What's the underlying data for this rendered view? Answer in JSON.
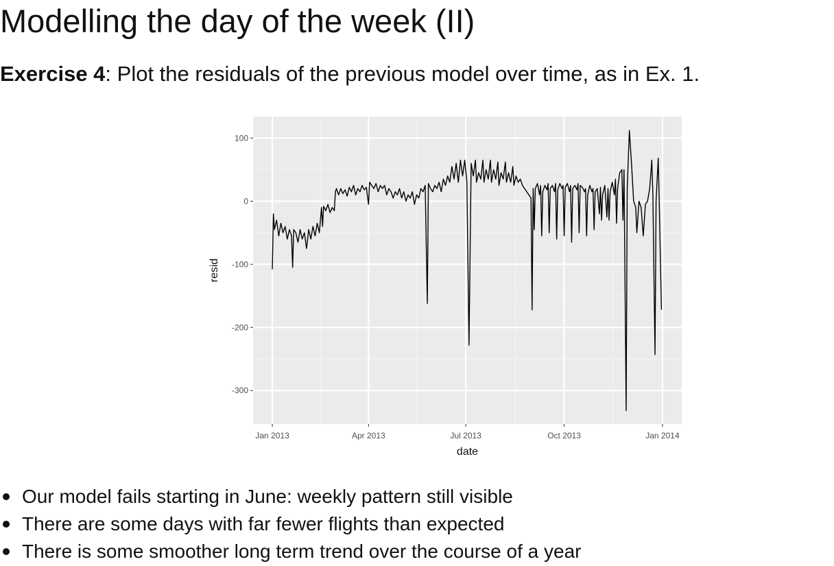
{
  "slide": {
    "title": "Modelling the day of the week (II)",
    "exercise": {
      "label": "Exercise 4",
      "text": ": Plot the residuals of the previous model over time, as in Ex. 1."
    },
    "bullets": [
      "Our model fails starting in June: weekly pattern still visible",
      "There are some days with far fewer flights than expected",
      "There is some smoother long term trend over the course of a year"
    ]
  },
  "chart_data": {
    "type": "line",
    "x_label": "date",
    "y_label": "resid",
    "color": "#000000",
    "grid": true,
    "xlim": [
      -18,
      383
    ],
    "xticks": [
      {
        "value": 0,
        "label": "Jan 2013"
      },
      {
        "value": 90,
        "label": "Apr 2013"
      },
      {
        "value": 181,
        "label": "Jul 2013"
      },
      {
        "value": 273,
        "label": "Oct 2013"
      },
      {
        "value": 365,
        "label": "Jan 2014"
      }
    ],
    "ylim": [
      -353,
      134
    ],
    "yticks": [
      -300,
      -200,
      -100,
      0,
      100
    ],
    "x": [
      0,
      1,
      2,
      4,
      6,
      8,
      10,
      12,
      14,
      16,
      18,
      19,
      20,
      22,
      24,
      26,
      28,
      30,
      32,
      34,
      36,
      38,
      40,
      42,
      44,
      46,
      47,
      48,
      50,
      52,
      54,
      56,
      58,
      59,
      60,
      62,
      64,
      66,
      68,
      70,
      72,
      74,
      76,
      78,
      80,
      82,
      84,
      86,
      88,
      90,
      91,
      93,
      95,
      97,
      99,
      101,
      103,
      105,
      107,
      109,
      111,
      113,
      115,
      117,
      119,
      121,
      123,
      125,
      127,
      129,
      131,
      133,
      135,
      137,
      139,
      141,
      143,
      145,
      146,
      148,
      150,
      152,
      154,
      156,
      158,
      160,
      162,
      164,
      166,
      168,
      170,
      172,
      174,
      176,
      178,
      180,
      182,
      184,
      186,
      188,
      190,
      191,
      193,
      195,
      197,
      198,
      200,
      202,
      204,
      205,
      207,
      209,
      211,
      212,
      214,
      216,
      218,
      219,
      221,
      223,
      225,
      226,
      228,
      230,
      232,
      234,
      236,
      238,
      240,
      242,
      243,
      244,
      245,
      246,
      248,
      250,
      251,
      252,
      253,
      255,
      257,
      258,
      259,
      260,
      262,
      264,
      265,
      266,
      267,
      269,
      271,
      272,
      273,
      274,
      276,
      278,
      279,
      280,
      281,
      283,
      285,
      286,
      287,
      288,
      290,
      292,
      293,
      294,
      295,
      297,
      299,
      300,
      301,
      302,
      304,
      306,
      307,
      308,
      309,
      311,
      313,
      314,
      315,
      316,
      318,
      320,
      321,
      322,
      323,
      325,
      327,
      328,
      329,
      331,
      332,
      334,
      336,
      338,
      340,
      341,
      343,
      345,
      347,
      349,
      351,
      353,
      355,
      356,
      358,
      359,
      361,
      362,
      364
    ],
    "values": [
      -108,
      -20,
      -45,
      -30,
      -55,
      -35,
      -50,
      -40,
      -60,
      -45,
      -55,
      -105,
      -45,
      -50,
      -65,
      -45,
      -60,
      -50,
      -75,
      -45,
      -60,
      -40,
      -55,
      -35,
      -50,
      -10,
      -40,
      -8,
      -15,
      -5,
      -18,
      -10,
      -15,
      15,
      20,
      10,
      20,
      12,
      18,
      8,
      22,
      15,
      25,
      10,
      20,
      15,
      25,
      18,
      22,
      -5,
      30,
      25,
      20,
      28,
      15,
      25,
      20,
      25,
      10,
      20,
      15,
      5,
      15,
      10,
      20,
      5,
      15,
      0,
      10,
      5,
      15,
      -5,
      10,
      5,
      20,
      15,
      25,
      -162,
      28,
      20,
      15,
      25,
      20,
      30,
      15,
      35,
      25,
      40,
      30,
      55,
      35,
      60,
      30,
      65,
      40,
      65,
      30,
      -228,
      60,
      40,
      65,
      30,
      45,
      35,
      65,
      30,
      50,
      35,
      65,
      30,
      50,
      35,
      62,
      25,
      45,
      35,
      62,
      30,
      45,
      30,
      55,
      25,
      40,
      30,
      35,
      25,
      20,
      15,
      10,
      5,
      -172,
      20,
      -45,
      20,
      28,
      10,
      25,
      -55,
      15,
      25,
      18,
      28,
      -50,
      20,
      25,
      15,
      28,
      -60,
      18,
      28,
      20,
      25,
      -55,
      22,
      28,
      15,
      25,
      -65,
      20,
      25,
      18,
      28,
      -50,
      25,
      22,
      15,
      20,
      -55,
      10,
      25,
      15,
      20,
      -45,
      15,
      20,
      -20,
      22,
      -30,
      10,
      25,
      -25,
      20,
      -30,
      15,
      30,
      10,
      35,
      -35,
      20,
      45,
      50,
      -30,
      50,
      -332,
      20,
      112,
      60,
      0,
      -10,
      -50,
      0,
      -10,
      -55,
      -5,
      0,
      20,
      65,
      10,
      -243,
      0,
      68,
      -5,
      -172
    ]
  }
}
